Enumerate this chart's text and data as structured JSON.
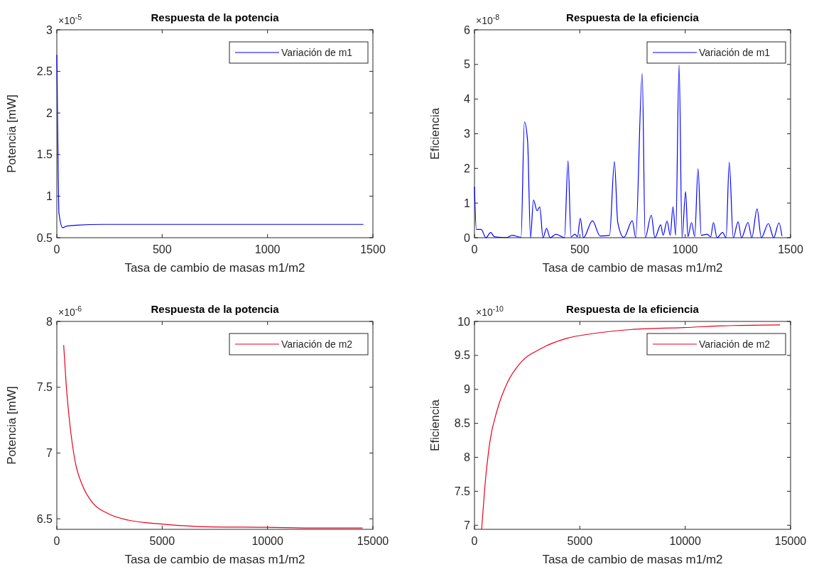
{
  "chart_data": [
    {
      "type": "line",
      "title": "Respuesta de la potencia",
      "xlabel": "Tasa de cambio de masas m1/m2",
      "ylabel": "Potencia [mW]",
      "annotations": [
        "×10$^{-5}$"
      ],
      "legend": "top right",
      "grid": false,
      "xlim": [
        0,
        1500
      ],
      "xticks": [
        0,
        500,
        1000,
        1500
      ],
      "ylim": [
        0.5,
        3
      ],
      "yticks": [
        0.5,
        1,
        1.5,
        2,
        2.5,
        3
      ],
      "series": [
        {
          "name": "Variación de m1",
          "color": "#0000ff",
          "x": [
            0,
            4,
            10,
            28,
            46,
            95,
            216,
            600,
            1000,
            1455
          ],
          "values": [
            2.7,
            1.84,
            0.8,
            0.62,
            0.64,
            0.65,
            0.66,
            0.66,
            0.66,
            0.66
          ]
        }
      ]
    },
    {
      "type": "line",
      "title": "Respuesta de la eficiencia",
      "xlabel": "Tasa de cambio de masas m1/m2",
      "ylabel": "Eficiencia",
      "annotations": [
        "×10$^{-8}$"
      ],
      "legend": "top right",
      "grid": false,
      "xlim": [
        0,
        1500
      ],
      "xticks": [
        0,
        500,
        1000,
        1500
      ],
      "ylim": [
        0,
        6
      ],
      "yticks": [
        0,
        1,
        2,
        3,
        4,
        5,
        6
      ],
      "series": [
        {
          "name": "Variación de m1",
          "color": "#0000ff",
          "x": [
            0,
            9,
            32,
            54,
            77,
            94,
            133,
            156,
            178,
            221,
            237,
            252,
            266,
            280,
            297,
            310,
            325,
            342,
            359,
            387,
            427,
            444,
            458,
            477,
            489,
            502,
            517,
            560,
            596,
            641,
            664,
            680,
            709,
            749,
            765,
            796,
            810,
            839,
            856,
            884,
            895,
            914,
            929,
            942,
            955,
            971,
            985,
            1002,
            1013,
            1030,
            1045,
            1061,
            1076,
            1104,
            1121,
            1134,
            1151,
            1177,
            1194,
            1209,
            1228,
            1251,
            1267,
            1298,
            1316,
            1341,
            1361,
            1395,
            1420,
            1445,
            1459
          ],
          "values": [
            1.47,
            0.24,
            0.24,
            0,
            0.15,
            0.03,
            0.01,
            0.01,
            0.07,
            0.01,
            3.34,
            2.8,
            0,
            1.09,
            0.78,
            0.89,
            0,
            0.27,
            0,
            0.1,
            0,
            2.22,
            0.03,
            0.1,
            0.03,
            0.56,
            0,
            0.49,
            0.05,
            0.07,
            2.2,
            0.44,
            0.01,
            0.49,
            0,
            4.74,
            0,
            0.65,
            0,
            0.37,
            0.07,
            0.48,
            0.07,
            0.89,
            0.07,
            4.99,
            0,
            1.33,
            0.03,
            0.44,
            0.03,
            1.99,
            0.07,
            0.1,
            0.03,
            0.44,
            0,
            0.15,
            0,
            2.18,
            0,
            0.46,
            0,
            0.44,
            0,
            0.83,
            0,
            0.41,
            0,
            0.43,
            0.05
          ]
        }
      ]
    },
    {
      "type": "line",
      "title": "Respuesta de la potencia",
      "xlabel": "Tasa de cambio de masas m1/m2",
      "ylabel": "Potencia [mW]",
      "annotations": [
        "×10$^{-6}$"
      ],
      "legend": "top right",
      "grid": false,
      "xlim": [
        0,
        15000
      ],
      "xticks": [
        0,
        5000,
        10000,
        15000
      ],
      "ylim": [
        6.42,
        8
      ],
      "yticks": [
        6.5,
        7,
        7.5,
        8
      ],
      "series": [
        {
          "name": "Variación de m2",
          "color": "#e8001c",
          "x": [
            325,
            445,
            625,
            865,
            1226,
            1707,
            2428,
            3389,
            5000,
            6995,
            10000,
            12400,
            14508
          ],
          "values": [
            7.82,
            7.52,
            7.21,
            6.94,
            6.75,
            6.62,
            6.54,
            6.49,
            6.46,
            6.44,
            6.435,
            6.43,
            6.43
          ]
        }
      ]
    },
    {
      "type": "line",
      "title": "Respuesta de la eficiencia",
      "xlabel": "Tasa de cambio de masas m1/m2",
      "ylabel": "Eficiencia",
      "annotations": [
        "×10$^{-10}$"
      ],
      "legend": "top right",
      "grid": false,
      "xlim": [
        0,
        15000
      ],
      "xticks": [
        0,
        5000,
        10000,
        15000
      ],
      "ylim": [
        6.94,
        10
      ],
      "yticks": [
        7,
        7.5,
        8,
        8.5,
        9,
        9.5,
        10
      ],
      "series": [
        {
          "name": "Variación de m2",
          "color": "#e8001c",
          "x": [
            340,
            485,
            728,
            1092,
            1578,
            2184,
            3155,
            4369,
            5583,
            7403,
            9951,
            12257,
            14502
          ],
          "values": [
            6.94,
            7.54,
            8.22,
            8.71,
            9.11,
            9.39,
            9.6,
            9.75,
            9.82,
            9.88,
            9.91,
            9.94,
            9.95
          ]
        }
      ]
    }
  ]
}
